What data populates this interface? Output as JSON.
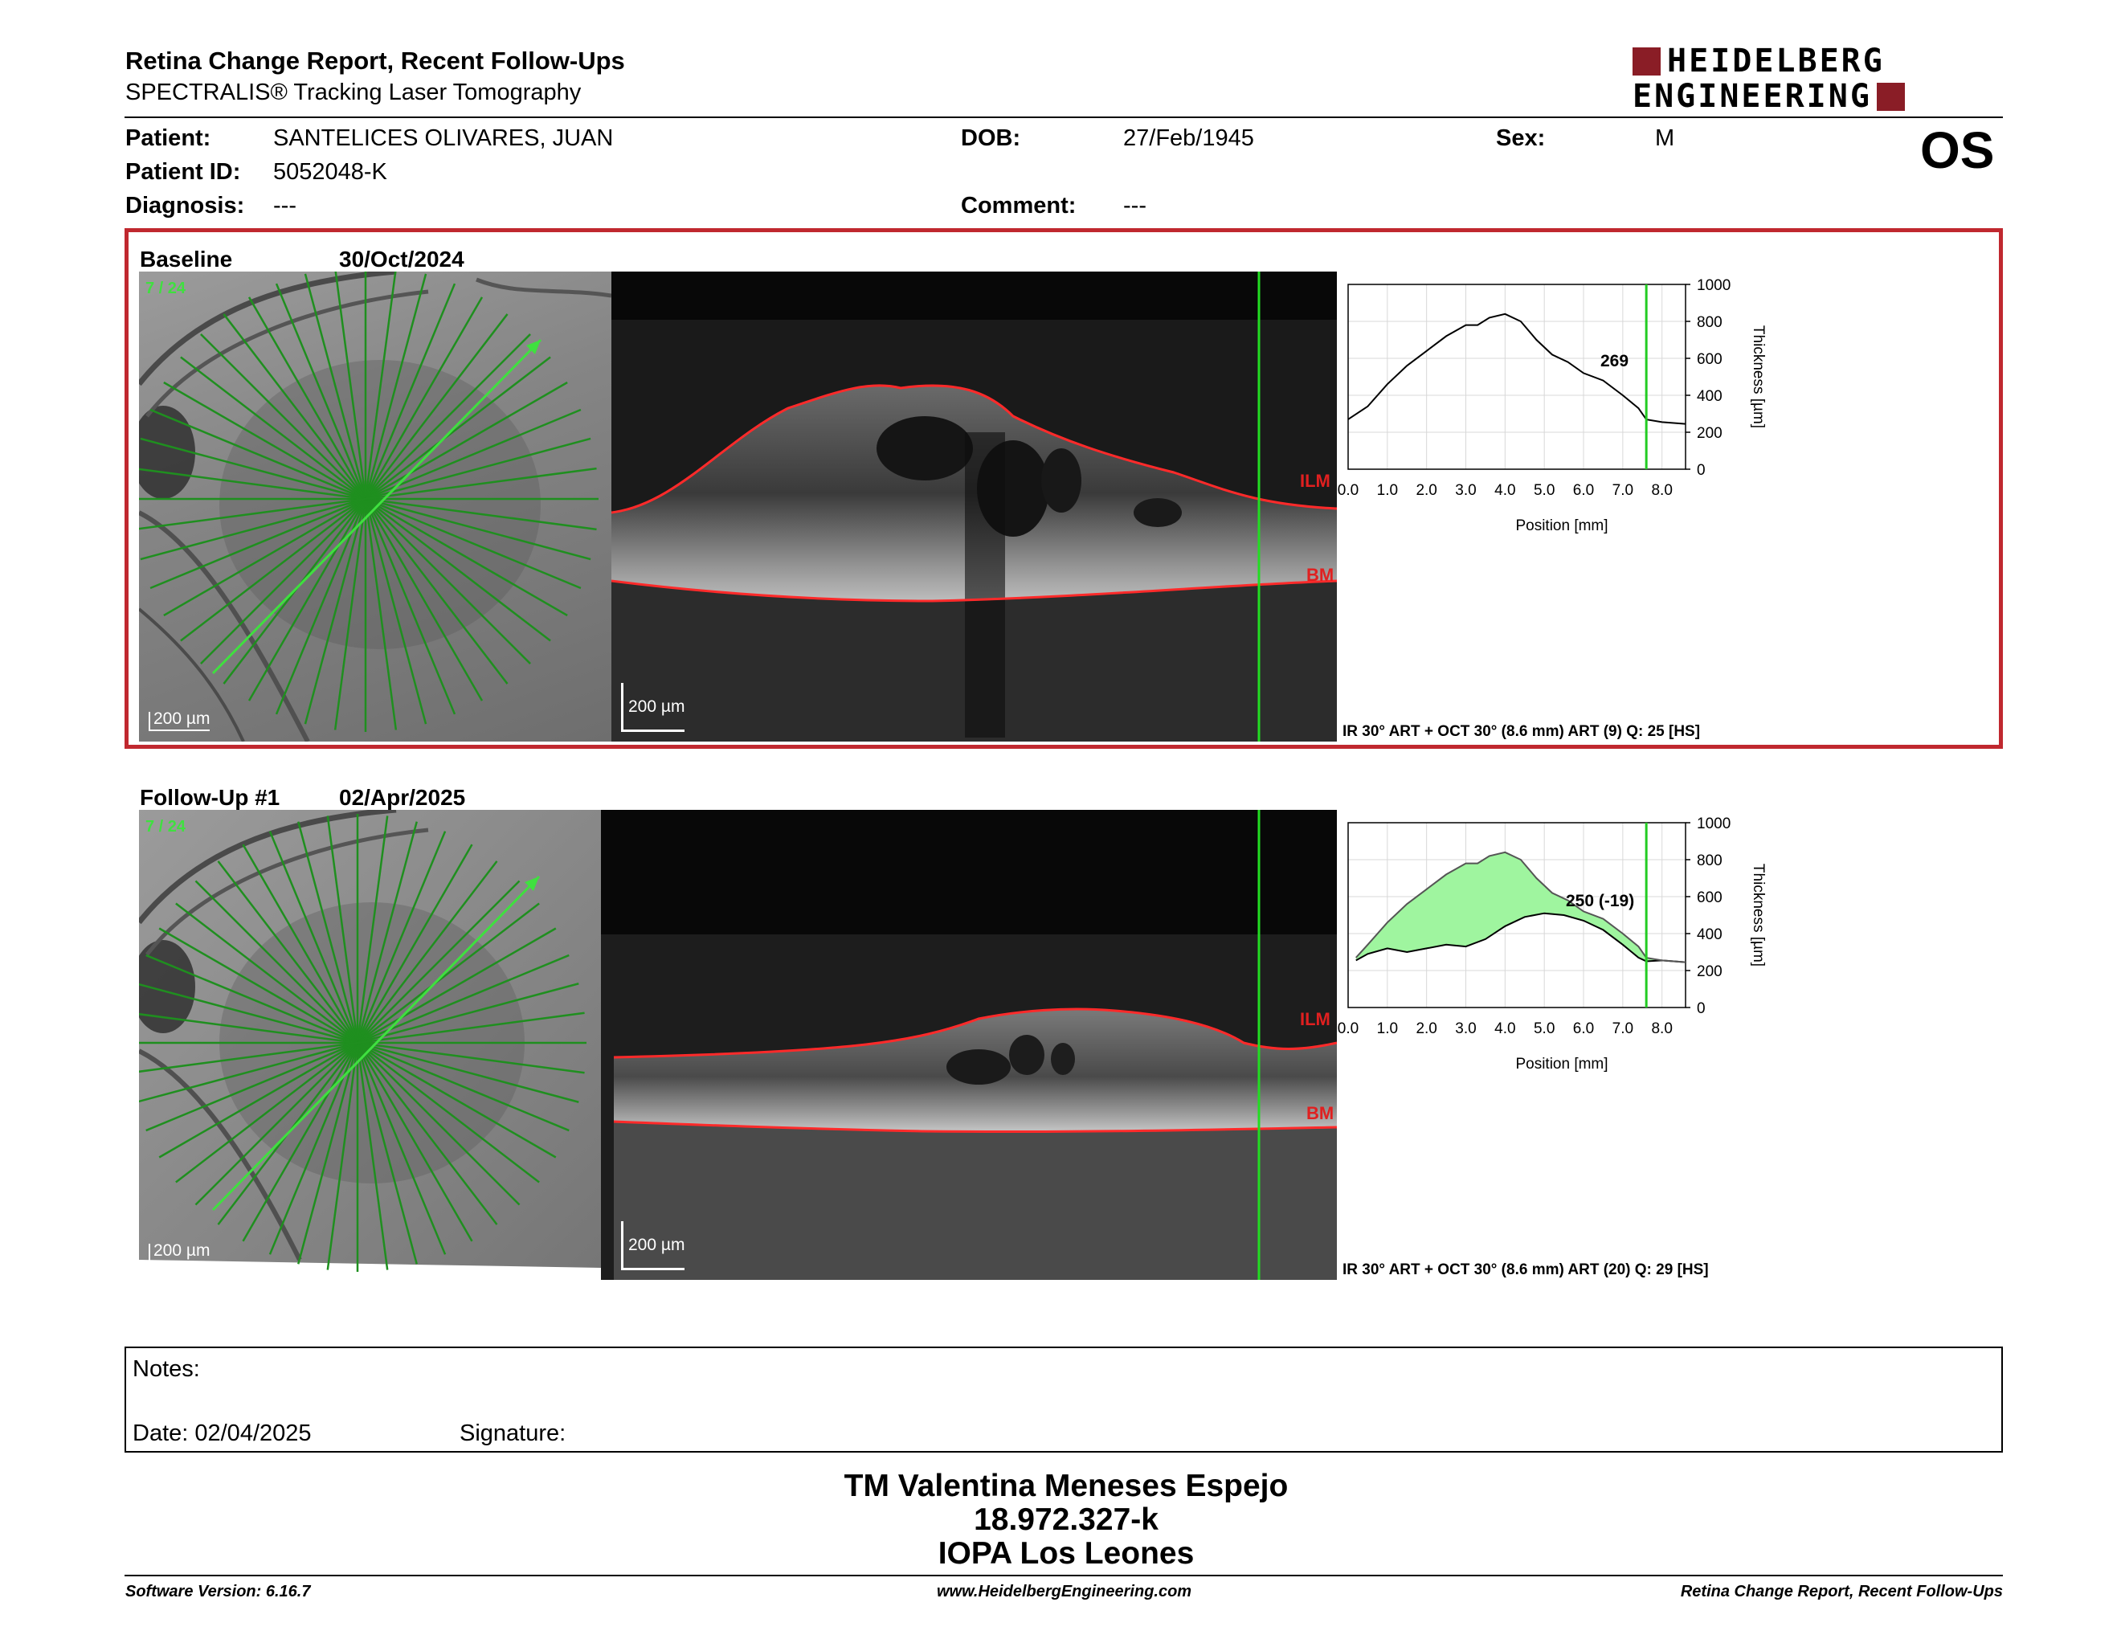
{
  "header": {
    "title": "Retina Change Report, Recent Follow-Ups",
    "subtitle": "SPECTRALIS® Tracking Laser Tomography",
    "logo_line1": "HEIDELBERG",
    "logo_line2": "ENGINEERING",
    "eye": "OS"
  },
  "patient": {
    "patient_label": "Patient:",
    "patient_value": "SANTELICES OLIVARES, JUAN",
    "dob_label": "DOB:",
    "dob_value": "27/Feb/1945",
    "sex_label": "Sex:",
    "sex_value": "M",
    "id_label": "Patient ID:",
    "id_value": "5052048-K",
    "diagnosis_label": "Diagnosis:",
    "diagnosis_value": "---",
    "comment_label": "Comment:",
    "comment_value": "---"
  },
  "exams": [
    {
      "label": "Baseline",
      "date": "30/Oct/2024",
      "scan_index": "7 / 24",
      "scale_fundus": "200 µm",
      "scale_oct": "200 µm",
      "ilm": "ILM",
      "bm": "BM",
      "caption": "IR 30° ART + OCT 30° (8.6 mm) ART (9) Q: 25 [HS]",
      "thickness_label": "269"
    },
    {
      "label": "Follow-Up #1",
      "date": "02/Apr/2025",
      "scan_index": "7 / 24",
      "scale_fundus": "200 µm",
      "scale_oct": "200 µm",
      "ilm": "ILM",
      "bm": "BM",
      "caption": "IR 30° ART + OCT 30° (8.6 mm) ART (20) Q: 29 [HS]",
      "thickness_label": "250 (-19)"
    }
  ],
  "chart_data": [
    {
      "type": "line",
      "xlabel": "Position [mm]",
      "ylabel": "Thickness [µm]",
      "xlim": [
        0,
        8.6
      ],
      "ylim": [
        0,
        1000
      ],
      "x_ticks": [
        "0.0",
        "1.0",
        "2.0",
        "3.0",
        "4.0",
        "5.0",
        "6.0",
        "7.0",
        "8.0"
      ],
      "y_ticks": [
        "0",
        "200",
        "400",
        "600",
        "800",
        "1000"
      ],
      "cursor_x": 7.6,
      "annotation": "269",
      "series": [
        {
          "x": [
            0,
            0.5,
            1.0,
            1.5,
            2.0,
            2.5,
            3.0,
            3.3,
            3.6,
            4.0,
            4.4,
            4.8,
            5.2,
            5.6,
            6.0,
            6.5,
            7.0,
            7.4,
            7.6,
            8.0,
            8.6
          ],
          "values": [
            270,
            340,
            460,
            560,
            640,
            720,
            780,
            780,
            820,
            840,
            800,
            700,
            620,
            580,
            520,
            480,
            400,
            330,
            269,
            255,
            245
          ]
        }
      ]
    },
    {
      "type": "area",
      "xlabel": "Position [mm]",
      "ylabel": "Thickness [µm]",
      "xlim": [
        0,
        8.6
      ],
      "ylim": [
        0,
        1000
      ],
      "x_ticks": [
        "0.0",
        "1.0",
        "2.0",
        "3.0",
        "4.0",
        "5.0",
        "6.0",
        "7.0",
        "8.0"
      ],
      "y_ticks": [
        "0",
        "200",
        "400",
        "600",
        "800",
        "1000"
      ],
      "cursor_x": 7.6,
      "annotation": "250 (-19)",
      "series": [
        {
          "x": [
            0.2,
            0.5,
            1.0,
            1.5,
            2.0,
            2.5,
            3.0,
            3.5,
            4.0,
            4.5,
            5.0,
            5.5,
            6.0,
            6.5,
            7.0,
            7.4,
            7.6,
            8.0,
            8.6
          ],
          "values": [
            255,
            290,
            320,
            300,
            320,
            340,
            330,
            370,
            440,
            490,
            510,
            500,
            470,
            420,
            340,
            270,
            250,
            255,
            245
          ]
        },
        {
          "x": [
            0.2,
            0.5,
            1.0,
            1.5,
            2.0,
            2.5,
            3.0,
            3.3,
            3.6,
            4.0,
            4.4,
            4.8,
            5.2,
            5.6,
            6.0,
            6.5,
            7.0,
            7.4,
            7.6,
            8.0,
            8.6
          ],
          "values": [
            270,
            340,
            460,
            560,
            640,
            720,
            780,
            780,
            820,
            840,
            800,
            700,
            620,
            580,
            520,
            480,
            400,
            330,
            269,
            255,
            245
          ]
        }
      ]
    }
  ],
  "notes": {
    "notes_label": "Notes:",
    "date_label": "Date: 02/04/2025",
    "signature_label": "Signature:"
  },
  "signature_block": {
    "name": "TM Valentina Meneses Espejo",
    "rut": "18.972.327-k",
    "institution": "IOPA Los Leones"
  },
  "footer": {
    "left": "Software Version: 6.16.7",
    "center": "www.HeidelbergEngineering.com",
    "right": "Retina Change Report, Recent Follow-Ups"
  }
}
